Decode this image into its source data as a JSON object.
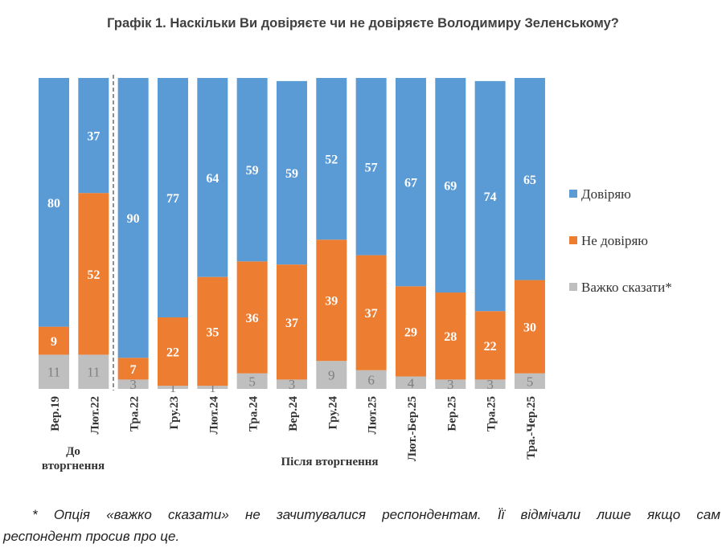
{
  "chart_data": {
    "type": "bar",
    "stacked": true,
    "title": "Графік 1. Наскільки Ви довіряєте чи не довіряєте Володимиру Зеленському?",
    "categories": [
      "Вер.19",
      "Лют.22",
      "Тра.22",
      "Гру.23",
      "Лют.24",
      "Тра.24",
      "Вер.24",
      "Гру.24",
      "Лют.25",
      "Лют.-Бер.25",
      "Бер.25",
      "Тра.25",
      "Тра.-Чер.25"
    ],
    "series": [
      {
        "name": "Довіряю",
        "color": "#5b9bd5",
        "values": [
          80,
          37,
          90,
          77,
          64,
          59,
          59,
          52,
          57,
          67,
          69,
          74,
          65
        ]
      },
      {
        "name": "Не довіряю",
        "color": "#ed7d31",
        "values": [
          9,
          52,
          7,
          22,
          35,
          36,
          37,
          39,
          37,
          29,
          28,
          22,
          30
        ]
      },
      {
        "name": "Важко сказати*",
        "color": "#bfbfbf",
        "values": [
          11,
          11,
          3,
          1,
          1,
          5,
          3,
          9,
          6,
          4,
          3,
          3,
          5
        ]
      }
    ],
    "ylim": [
      0,
      100
    ],
    "legend": "right",
    "grid": false,
    "group_labels": [
      "До вторгнення",
      "Після вторгнення"
    ]
  },
  "footnote": {
    "line1": "* Опція «важко сказати» не зачитувалися респондентам. Її відмічали лише якщо сам",
    "line2": "респондент просив про це."
  }
}
